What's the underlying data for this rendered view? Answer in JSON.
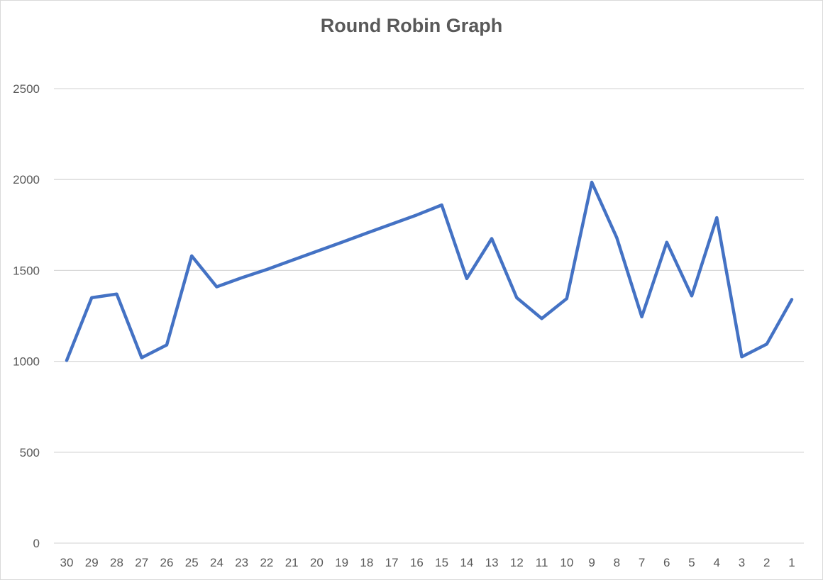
{
  "chart_data": {
    "type": "line",
    "title": "Round Robin Graph",
    "xlabel": "",
    "ylabel": "",
    "categories": [
      "30",
      "29",
      "28",
      "27",
      "26",
      "25",
      "24",
      "23",
      "22",
      "21",
      "20",
      "19",
      "18",
      "17",
      "16",
      "15",
      "14",
      "13",
      "12",
      "11",
      "10",
      "9",
      "8",
      "7",
      "6",
      "5",
      "4",
      "3",
      "2",
      "1"
    ],
    "series": [
      {
        "values": [
          1005,
          1350,
          1370,
          1020,
          1090,
          1580,
          1410,
          1460,
          1505,
          1555,
          1605,
          1655,
          1705,
          1755,
          1805,
          1860,
          1455,
          1675,
          1350,
          1235,
          1345,
          1985,
          1680,
          1245,
          1655,
          1360,
          1790,
          1025,
          1095,
          1340
        ],
        "color": "#4472c4"
      }
    ],
    "ylim": [
      0,
      2500
    ],
    "yticks": [
      0,
      500,
      1000,
      1500,
      2000,
      2500
    ],
    "grid": true,
    "legend": "none"
  }
}
